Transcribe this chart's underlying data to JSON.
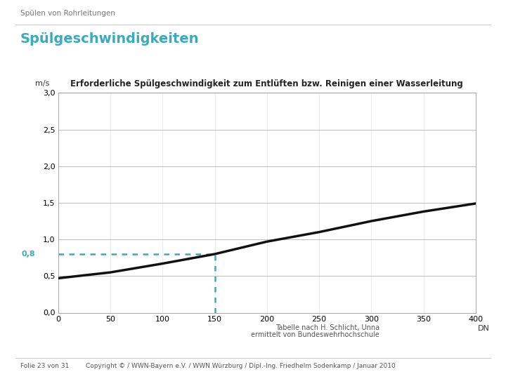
{
  "title_header": "Spülen von Rohrleitungen",
  "title_main": "Spülgeschwindigkeiten",
  "chart_title": "Erforderliche Spülgeschwindigkeit zum Entlüften bzw. Reinigen einer Wasserleitung",
  "ylabel": "m/s",
  "xlabel": "DN",
  "xlim": [
    0,
    400
  ],
  "ylim": [
    0.0,
    3.0
  ],
  "xticks": [
    0,
    50,
    100,
    150,
    200,
    250,
    300,
    350,
    400
  ],
  "yticks": [
    0.0,
    0.5,
    1.0,
    1.5,
    2.0,
    2.5,
    3.0
  ],
  "ytick_labels": [
    "0,0",
    "0,5",
    "1,0",
    "1,5",
    "2,0",
    "2,5",
    "3,0"
  ],
  "curve_x": [
    0,
    50,
    100,
    150,
    200,
    250,
    300,
    350,
    400
  ],
  "curve_y": [
    0.47,
    0.55,
    0.67,
    0.8,
    0.97,
    1.1,
    1.25,
    1.38,
    1.49
  ],
  "hline_y": 0.8,
  "hline_x_start": 0,
  "hline_x_end": 150,
  "vline_x": 150,
  "vline_y_start": 0.0,
  "vline_y_end": 0.8,
  "highlight_color": "#3aabbd",
  "curve_color": "#111111",
  "grid_color": "#bbbbbb",
  "bg_color": "#ffffff",
  "outer_bg": "#ffffff",
  "annotation_text1": "Tabelle nach H. Schlicht, Unna",
  "annotation_text2": "ermittelt von Bundeswehrhochschule",
  "footer_left": "Folie 23 von 31",
  "footer_right": "Copyright © / WWN-Bayern e.V. / WWN Würzburg / Dipl.-Ing. Friedhelm Sodenkamp / Januar 2010",
  "hline_label": "0,8",
  "header_color": "#777777",
  "title_color": "#3aabbd",
  "separator_color": "#cccccc"
}
